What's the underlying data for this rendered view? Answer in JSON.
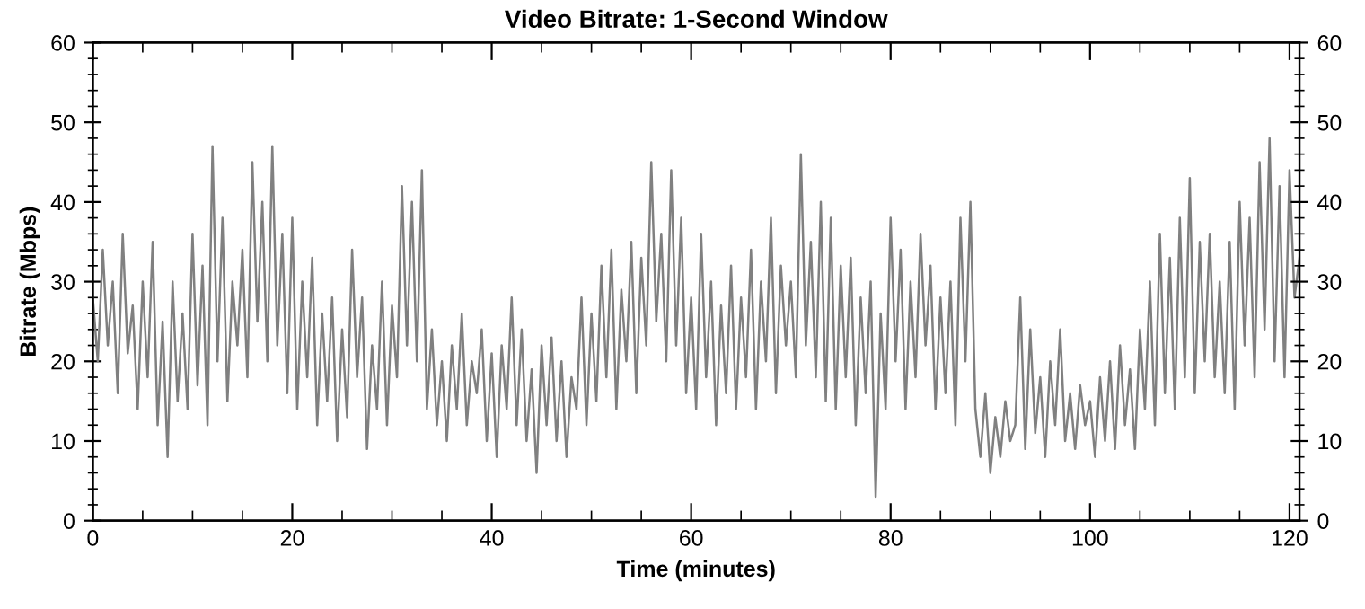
{
  "chart_data": {
    "type": "line",
    "title": "Video Bitrate: 1-Second Window",
    "xlabel": "Time (minutes)",
    "ylabel": "Bitrate (Mbps)",
    "xlim": [
      0,
      121
    ],
    "xticks": [
      0,
      20,
      40,
      60,
      80,
      100,
      120
    ],
    "ylim": [
      0,
      60
    ],
    "yticks": [
      0,
      10,
      20,
      30,
      40,
      50,
      60
    ],
    "y2lim": [
      0,
      60
    ],
    "y2ticks": [
      0,
      10,
      20,
      30,
      40,
      50,
      60
    ],
    "grid": false,
    "marker": "none",
    "line_style": "solid",
    "series": [
      {
        "color": "#808080",
        "x": [
          0,
          0.5,
          1,
          1.5,
          2,
          2.5,
          3,
          3.5,
          4,
          4.5,
          5,
          5.5,
          6,
          6.5,
          7,
          7.5,
          8,
          8.5,
          9,
          9.5,
          10,
          10.5,
          11,
          11.5,
          12,
          12.5,
          13,
          13.5,
          14,
          14.5,
          15,
          15.5,
          16,
          16.5,
          17,
          17.5,
          18,
          18.5,
          19,
          19.5,
          20,
          20.5,
          21,
          21.5,
          22,
          22.5,
          23,
          23.5,
          24,
          24.5,
          25,
          25.5,
          26,
          26.5,
          27,
          27.5,
          28,
          28.5,
          29,
          29.5,
          30,
          30.5,
          31,
          31.5,
          32,
          32.5,
          33,
          33.5,
          34,
          34.5,
          35,
          35.5,
          36,
          36.5,
          37,
          37.5,
          38,
          38.5,
          39,
          39.5,
          40,
          40.5,
          41,
          41.5,
          42,
          42.5,
          43,
          43.5,
          44,
          44.5,
          45,
          45.5,
          46,
          46.5,
          47,
          47.5,
          48,
          48.5,
          49,
          49.5,
          50,
          50.5,
          51,
          51.5,
          52,
          52.5,
          53,
          53.5,
          54,
          54.5,
          55,
          55.5,
          56,
          56.5,
          57,
          57.5,
          58,
          58.5,
          59,
          59.5,
          60,
          60.5,
          61,
          61.5,
          62,
          62.5,
          63,
          63.5,
          64,
          64.5,
          65,
          65.5,
          66,
          66.5,
          67,
          67.5,
          68,
          68.5,
          69,
          69.5,
          70,
          70.5,
          71,
          71.5,
          72,
          72.5,
          73,
          73.5,
          74,
          74.5,
          75,
          75.5,
          76,
          76.5,
          77,
          77.5,
          78,
          78.5,
          79,
          79.5,
          80,
          80.5,
          81,
          81.5,
          82,
          82.5,
          83,
          83.5,
          84,
          84.5,
          85,
          85.5,
          86,
          86.5,
          87,
          87.5,
          88,
          88.5,
          89,
          89.5,
          90,
          90.5,
          91,
          91.5,
          92,
          92.5,
          93,
          93.5,
          94,
          94.5,
          95,
          95.5,
          96,
          96.5,
          97,
          97.5,
          98,
          98.5,
          99,
          99.5,
          100,
          100.5,
          101,
          101.5,
          102,
          102.5,
          103,
          103.5,
          104,
          104.5,
          105,
          105.5,
          106,
          106.5,
          107,
          107.5,
          108,
          108.5,
          109,
          109.5,
          110,
          110.5,
          111,
          111.5,
          112,
          112.5,
          113,
          113.5,
          114,
          114.5,
          115,
          115.5,
          116,
          116.5,
          117,
          117.5,
          118,
          118.5,
          119,
          119.5,
          120,
          120.5,
          121
        ],
        "values": [
          28,
          20,
          34,
          22,
          30,
          16,
          36,
          21,
          27,
          14,
          30,
          18,
          35,
          12,
          25,
          8,
          30,
          15,
          26,
          14,
          36,
          17,
          32,
          12,
          47,
          20,
          38,
          15,
          30,
          22,
          34,
          18,
          45,
          25,
          40,
          20,
          47,
          22,
          36,
          16,
          38,
          14,
          30,
          18,
          33,
          12,
          26,
          15,
          28,
          10,
          24,
          13,
          34,
          18,
          28,
          9,
          22,
          14,
          30,
          12,
          27,
          18,
          42,
          22,
          40,
          20,
          44,
          14,
          24,
          12,
          20,
          10,
          22,
          14,
          26,
          12,
          20,
          16,
          24,
          10,
          21,
          8,
          22,
          14,
          28,
          12,
          24,
          10,
          19,
          6,
          22,
          12,
          23,
          10,
          20,
          8,
          18,
          14,
          28,
          12,
          26,
          15,
          32,
          18,
          34,
          14,
          29,
          20,
          35,
          16,
          33,
          22,
          45,
          25,
          36,
          20,
          44,
          22,
          38,
          16,
          28,
          14,
          36,
          18,
          30,
          12,
          27,
          16,
          32,
          14,
          28,
          18,
          34,
          14,
          30,
          20,
          38,
          16,
          32,
          22,
          30,
          18,
          46,
          22,
          35,
          18,
          40,
          15,
          38,
          14,
          32,
          18,
          33,
          12,
          28,
          16,
          30,
          3,
          26,
          14,
          38,
          20,
          34,
          14,
          30,
          18,
          36,
          22,
          32,
          14,
          28,
          16,
          30,
          12,
          38,
          20,
          40,
          14,
          8,
          16,
          6,
          13,
          8,
          15,
          10,
          12,
          28,
          9,
          24,
          11,
          18,
          8,
          20,
          12,
          24,
          10,
          16,
          9,
          17,
          12,
          15,
          8,
          18,
          10,
          20,
          9,
          22,
          12,
          19,
          9,
          24,
          14,
          30,
          12,
          36,
          16,
          33,
          14,
          38,
          18,
          43,
          16,
          35,
          20,
          36,
          18,
          30,
          16,
          35,
          14,
          40,
          22,
          38,
          18,
          45,
          24,
          48,
          20,
          42,
          18,
          44,
          28,
          33
        ]
      }
    ]
  }
}
